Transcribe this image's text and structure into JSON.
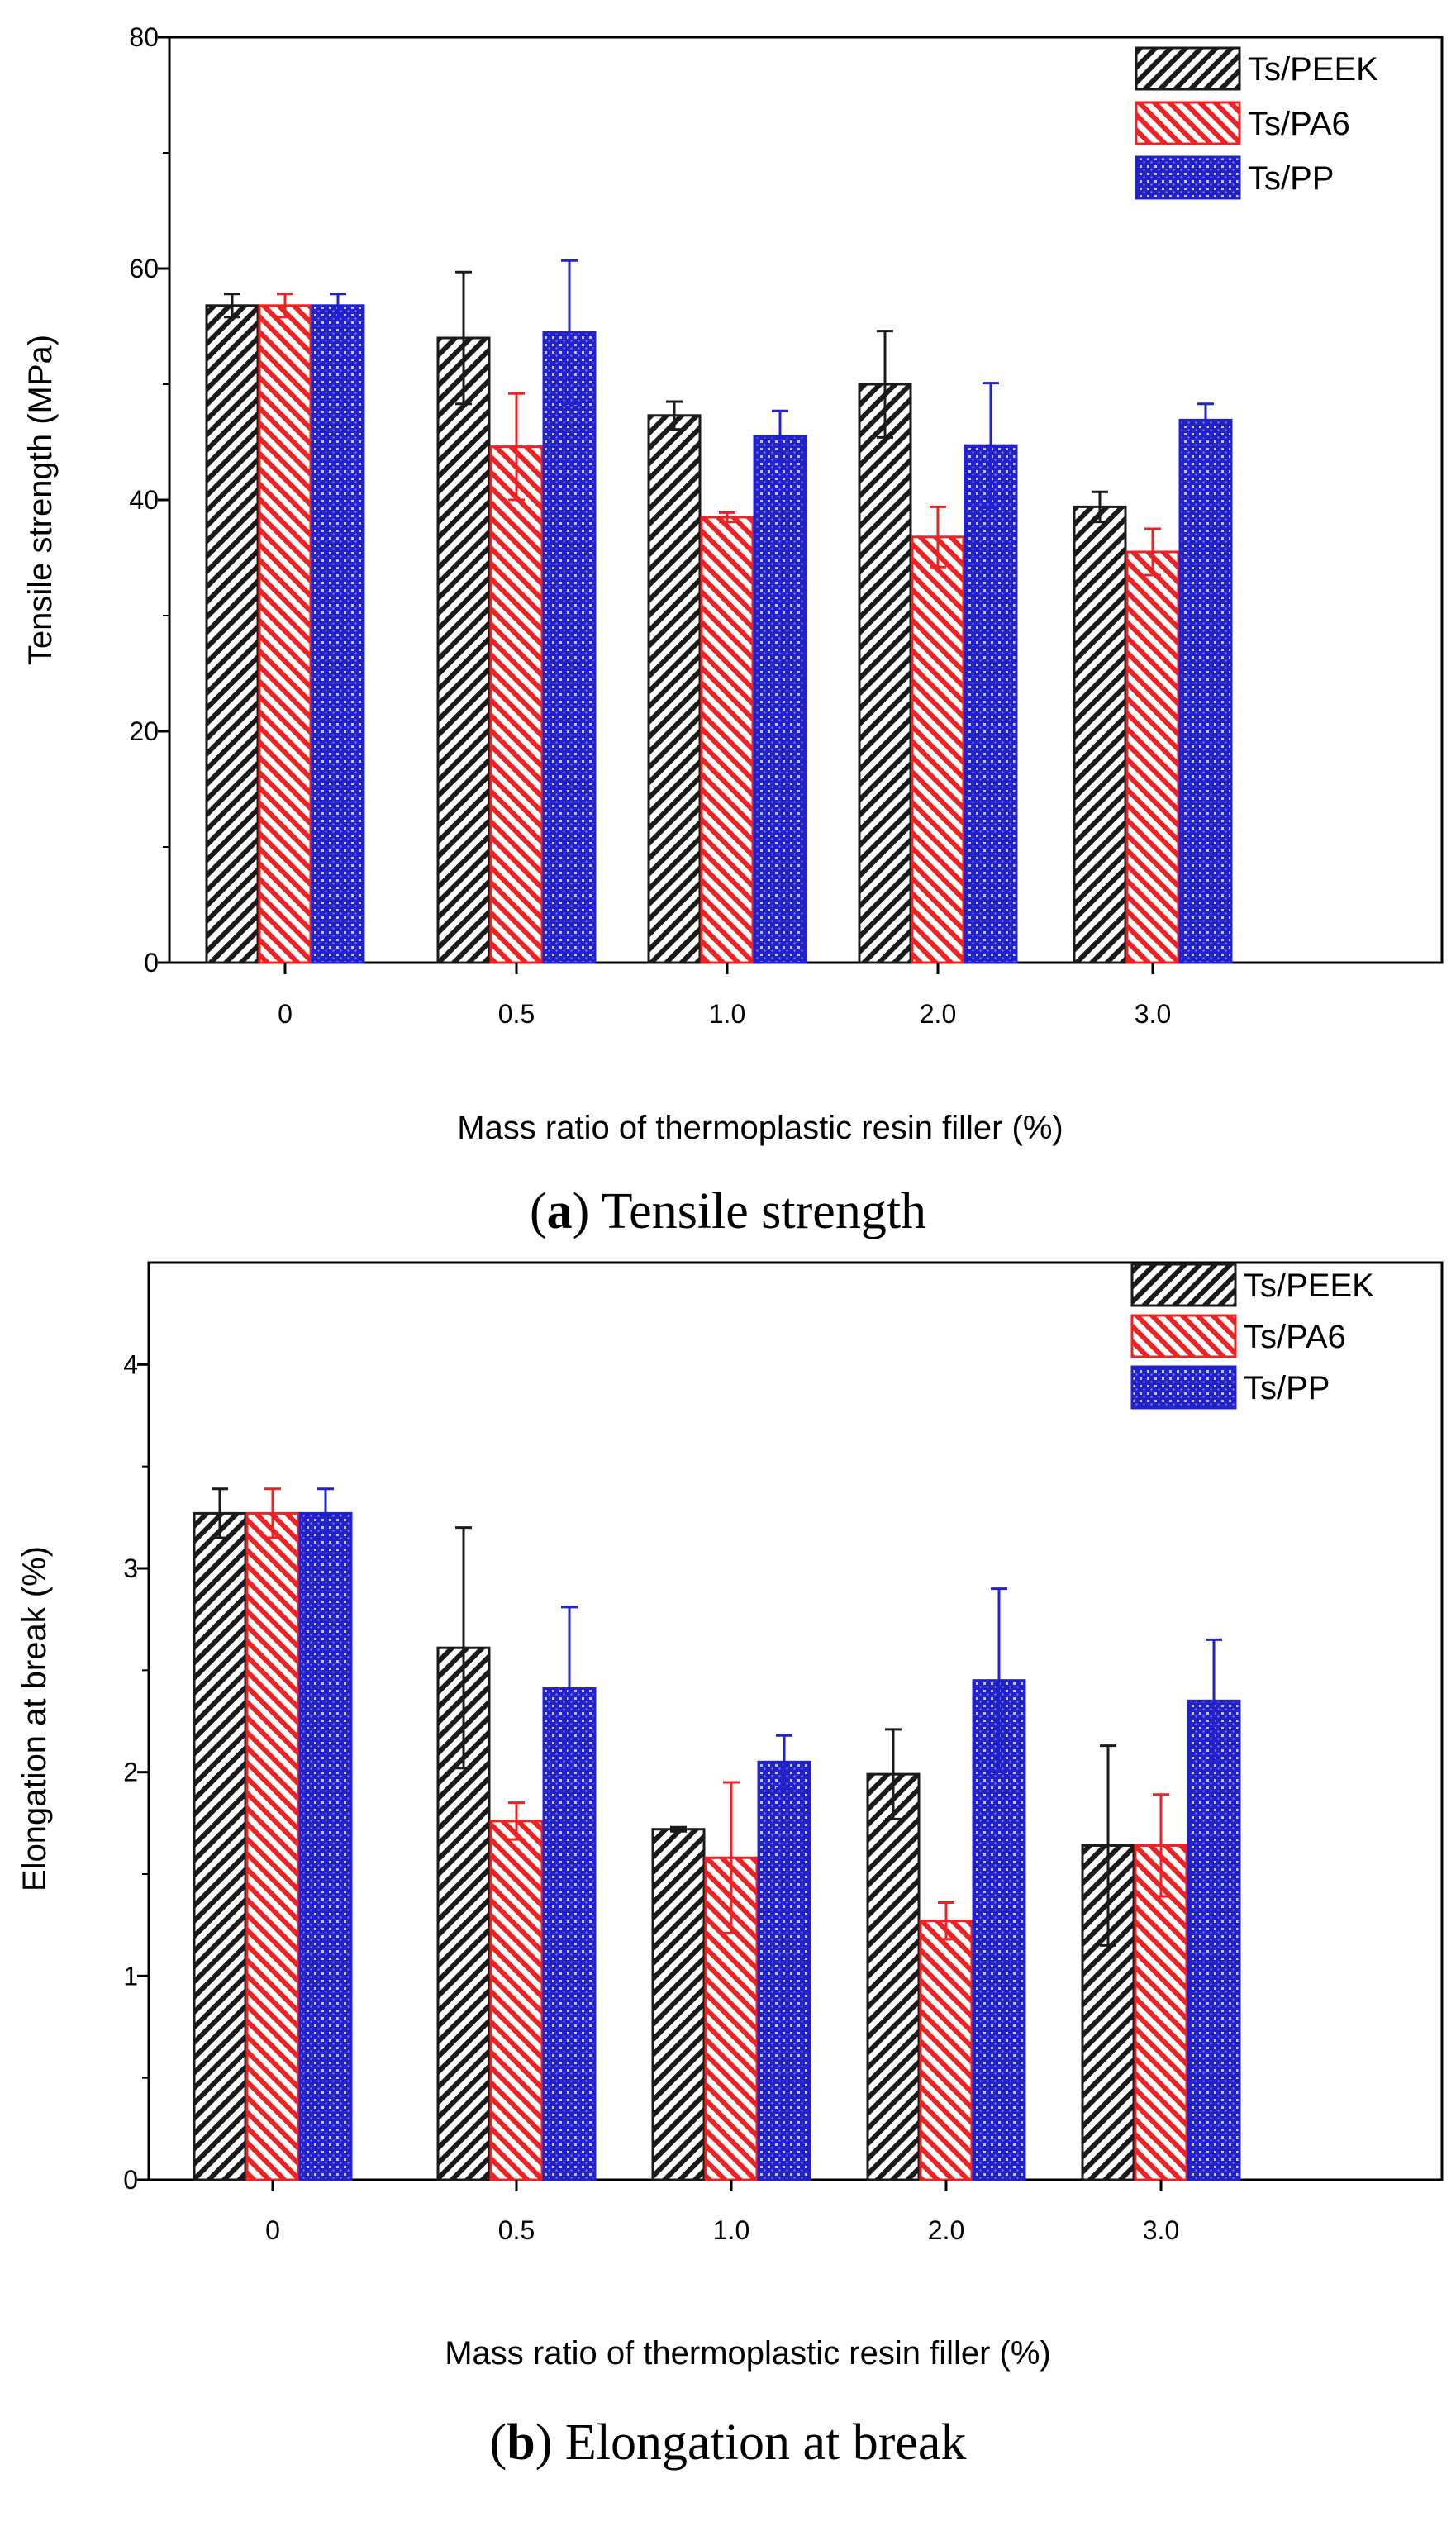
{
  "colors": {
    "peek": "#1a1a1a",
    "pa6": "#ee2222",
    "pp": "#2222cc",
    "axis": "#000000"
  },
  "chart_data": [
    {
      "type": "bar",
      "panel_label": "a",
      "caption": "Tensile strength",
      "xlabel": "Mass ratio of thermoplastic resin filler (%)",
      "ylabel": "Tensile strength (MPa)",
      "categories": [
        "0",
        "0.5",
        "1.0",
        "2.0",
        "3.0"
      ],
      "ylim": [
        0,
        80
      ],
      "yticks": [
        0,
        20,
        40,
        60,
        80
      ],
      "ytick_labels": [
        "0",
        "20",
        "40",
        "60",
        "80"
      ],
      "legend_position": "top-right",
      "series": [
        {
          "key": "peek",
          "name": "Ts/PEEK",
          "values": [
            56.8,
            54.0,
            47.3,
            50.0,
            39.4
          ],
          "errors": [
            1.0,
            5.7,
            1.2,
            4.6,
            1.3
          ]
        },
        {
          "key": "pa6",
          "name": "Ts/PA6",
          "values": [
            56.8,
            44.6,
            38.5,
            36.8,
            35.5
          ],
          "errors": [
            1.0,
            4.6,
            0.4,
            2.6,
            2.0
          ]
        },
        {
          "key": "pp",
          "name": "Ts/PP",
          "values": [
            56.8,
            54.5,
            45.5,
            44.7,
            46.9
          ],
          "errors": [
            1.0,
            6.2,
            2.2,
            5.4,
            1.4
          ]
        }
      ]
    },
    {
      "type": "bar",
      "panel_label": "b",
      "caption": "Elongation at break",
      "xlabel": "Mass ratio of thermoplastic resin filler (%)",
      "ylabel": "Elongation at break (%)",
      "categories": [
        "0",
        "0.5",
        "1.0",
        "2.0",
        "3.0"
      ],
      "ylim": [
        0,
        4.5
      ],
      "yticks": [
        0,
        1,
        2,
        3,
        4
      ],
      "ytick_labels": [
        "0",
        "1",
        "2",
        "3",
        "4"
      ],
      "legend_position": "top-right",
      "series": [
        {
          "key": "peek",
          "name": "Ts/PEEK",
          "values": [
            3.27,
            2.61,
            1.72,
            1.99,
            1.64
          ],
          "errors": [
            0.12,
            0.59,
            0.01,
            0.22,
            0.49
          ]
        },
        {
          "key": "pa6",
          "name": "Ts/PA6",
          "values": [
            3.27,
            1.76,
            1.58,
            1.27,
            1.64
          ],
          "errors": [
            0.12,
            0.09,
            0.37,
            0.09,
            0.25
          ]
        },
        {
          "key": "pp",
          "name": "Ts/PP",
          "values": [
            3.27,
            2.41,
            2.05,
            2.45,
            2.35
          ],
          "errors": [
            0.12,
            0.4,
            0.13,
            0.45,
            0.3
          ]
        }
      ]
    }
  ]
}
